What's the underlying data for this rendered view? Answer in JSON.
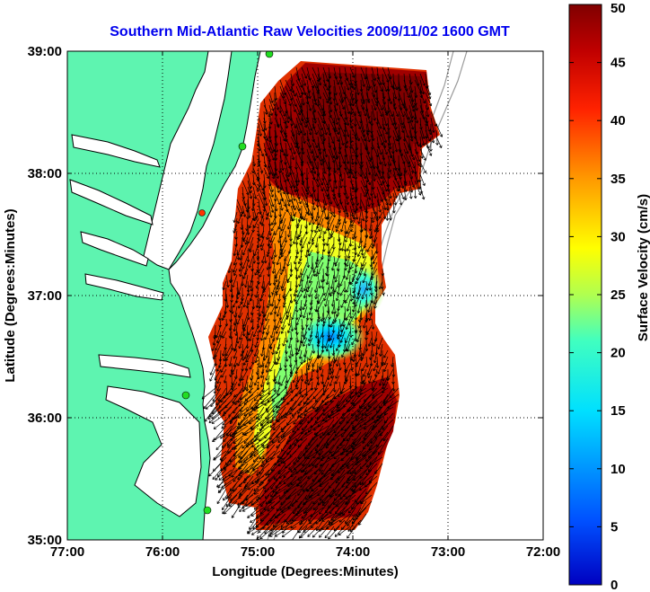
{
  "title": "Southern Mid-Atlantic Raw Velocities 2009/11/02 1600 GMT",
  "xlabel": "Longitude (Degrees:Minutes)",
  "ylabel": "Latitude (Degrees:Minutes)",
  "colorbar": {
    "label": "Surface Velocity (cm/s)",
    "ticks": [
      "0",
      "5",
      "10",
      "15",
      "20",
      "25",
      "30",
      "35",
      "40",
      "45",
      "50"
    ],
    "range": [
      0,
      50
    ],
    "colormap": "jet"
  },
  "chart_data": {
    "type": "heatmap",
    "title": "Southern Mid-Atlantic Raw Velocities 2009/11/02 1600 GMT",
    "xlabel": "Longitude (Degrees:Minutes)",
    "ylabel": "Latitude (Degrees:Minutes)",
    "xlim": [
      -77,
      -72
    ],
    "ylim": [
      35,
      39
    ],
    "x_ticks": [
      "77:00",
      "76:00",
      "75:00",
      "74:00",
      "73:00",
      "72:00"
    ],
    "y_ticks": [
      "35:00",
      "36:00",
      "37:00",
      "38:00",
      "39:00"
    ],
    "grid": true,
    "colors": {
      "land": "#5ef4b0",
      "coastline": "#000000",
      "bathymetry": "#9a9a9a",
      "title": "#0000ee",
      "station_marker": "#22dd22",
      "station_marker_alt": "#ff3300"
    }
  }
}
